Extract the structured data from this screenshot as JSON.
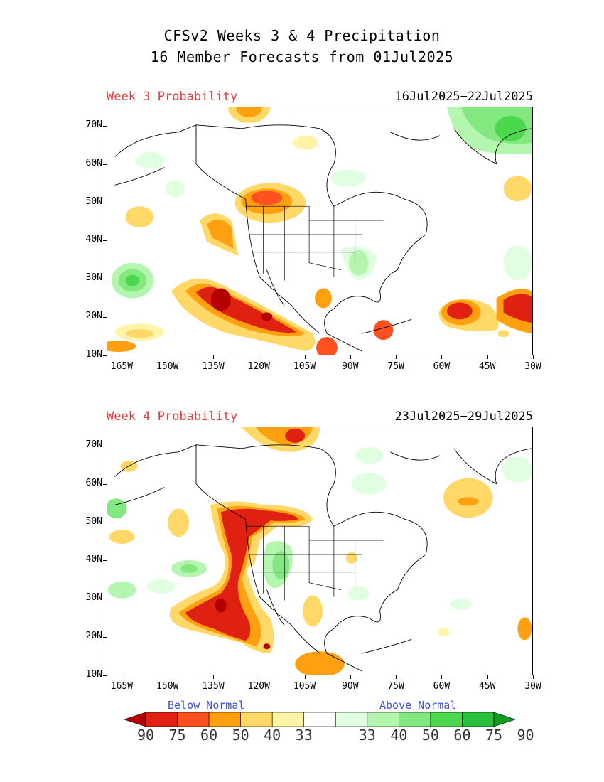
{
  "header": {
    "title_line1": "CFSv2 Weeks 3 & 4 Precipitation",
    "title_line2": "16 Member Forecasts from 01Jul2025"
  },
  "panels": [
    {
      "label": "Week 3 Probability",
      "dates": "16Jul2025−22Jul2025"
    },
    {
      "label": "Week 4 Probability",
      "dates": "23Jul2025−29Jul2025"
    }
  ],
  "axes": {
    "lat_ticks": [
      "70N",
      "60N",
      "50N",
      "40N",
      "30N",
      "20N",
      "10N"
    ],
    "lon_ticks": [
      "165W",
      "150W",
      "135W",
      "120W",
      "105W",
      "90W",
      "75W",
      "60W",
      "45W",
      "30W"
    ]
  },
  "legend": {
    "below_label": "Below Normal",
    "above_label": "Above Normal",
    "values": [
      "90",
      "75",
      "60",
      "50",
      "40",
      "33",
      "33",
      "40",
      "50",
      "60",
      "75",
      "90"
    ],
    "colors": [
      "#b40000",
      "#e02010",
      "#ff5020",
      "#ffa010",
      "#ffd868",
      "#fff4a8",
      "#ffffff",
      "#e0ffe0",
      "#b4f5b0",
      "#84e880",
      "#4cd84c",
      "#28c03c",
      "#129c20"
    ]
  }
}
